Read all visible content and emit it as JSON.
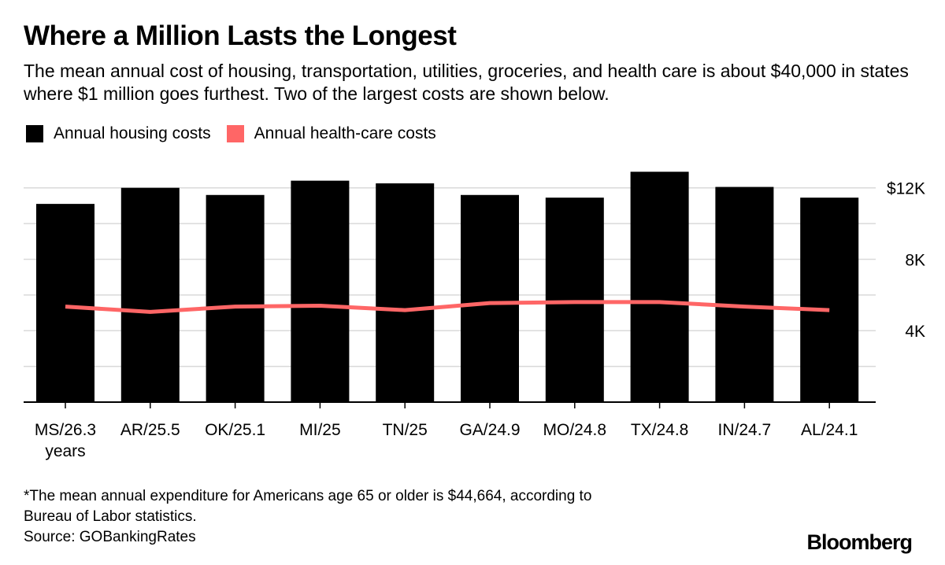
{
  "chart_data": {
    "type": "bar",
    "title": "Where a Million Lasts the Longest",
    "subtitle": "The mean annual cost of housing, transportation, utilities, groceries, and health care is about $40,000 in states where $1 million goes furthest. Two of the largest costs are shown below.",
    "categories": [
      "MS/26.3",
      "AR/25.5",
      "OK/25.1",
      "MI/25",
      "TN/25",
      "GA/24.9",
      "MO/24.8",
      "TX/24.8",
      "IN/24.7",
      "AL/24.1"
    ],
    "category_sublabels": [
      "years",
      "",
      "",
      "",
      "",
      "",
      "",
      "",
      "",
      ""
    ],
    "series": [
      {
        "name": "Annual housing costs",
        "type": "bar",
        "color": "#000000",
        "values": [
          11100,
          12000,
          11600,
          12400,
          12250,
          11600,
          11450,
          12900,
          12050,
          11450
        ]
      },
      {
        "name": "Annual health-care costs",
        "type": "line",
        "color": "#ff6666",
        "values": [
          5350,
          5050,
          5350,
          5400,
          5150,
          5550,
          5600,
          5600,
          5350,
          5150
        ]
      }
    ],
    "y_ticks": [
      {
        "value": 4000,
        "label": "4K"
      },
      {
        "value": 8000,
        "label": "8K"
      },
      {
        "value": 12000,
        "label": "$12K"
      }
    ],
    "minor_y_ticks": [
      2000,
      6000,
      10000
    ],
    "ylim": [
      0,
      13000
    ],
    "grid": true,
    "y_axis_position": "right",
    "legend_position": "top-left"
  },
  "footnote": {
    "line1": "*The mean annual expenditure for Americans age 65 or older is $44,664, according to",
    "line2": "Bureau of Labor statistics.",
    "source": "Source: GOBankingRates"
  },
  "brand": "Bloomberg"
}
